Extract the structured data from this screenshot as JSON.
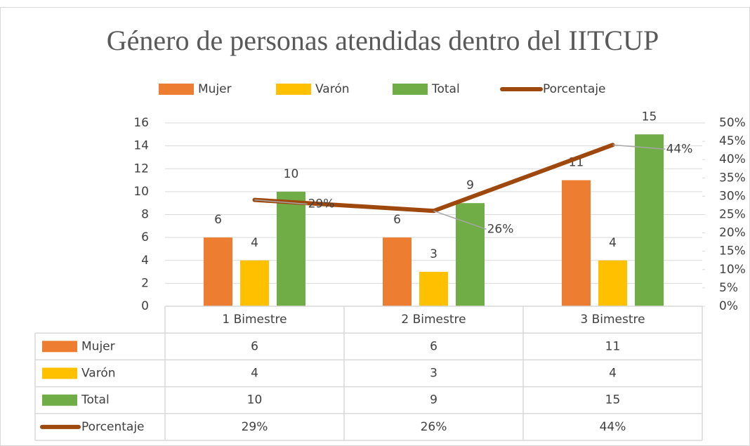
{
  "chart_data": {
    "type": "bar",
    "title": "Género de personas atendidas dentro del IITCUP",
    "categories": [
      "1 Bimestre",
      "2 Bimestre",
      "3 Bimestre"
    ],
    "series": [
      {
        "name": "Mujer",
        "color": "#ed7d31",
        "values": [
          6,
          6,
          11
        ]
      },
      {
        "name": "Varón",
        "color": "#ffc000",
        "values": [
          4,
          3,
          4
        ]
      },
      {
        "name": "Total",
        "color": "#70ad47",
        "values": [
          10,
          9,
          15
        ]
      },
      {
        "name": "Porcentaje",
        "color": "#9e480e",
        "type": "line",
        "axis": "y2",
        "values": [
          29,
          26,
          44
        ],
        "value_labels": [
          "29%",
          "26%",
          "44%"
        ]
      }
    ],
    "ylim": [
      0,
      16
    ],
    "yticks": [
      0,
      2,
      4,
      6,
      8,
      10,
      12,
      14,
      16
    ],
    "y2lim": [
      0,
      50
    ],
    "y2ticks": [
      {
        "value": 0,
        "label": "0%"
      },
      {
        "value": 5,
        "label": "5%"
      },
      {
        "value": 10,
        "label": "10%"
      },
      {
        "value": 15,
        "label": "15%"
      },
      {
        "value": 20,
        "label": "20%"
      },
      {
        "value": 25,
        "label": "25%"
      },
      {
        "value": 30,
        "label": "30%"
      },
      {
        "value": 35,
        "label": "35%"
      },
      {
        "value": 40,
        "label": "40%"
      },
      {
        "value": 45,
        "label": "45%"
      },
      {
        "value": 50,
        "label": "50%"
      }
    ],
    "grid": true,
    "legend": "top",
    "data_table": true
  }
}
